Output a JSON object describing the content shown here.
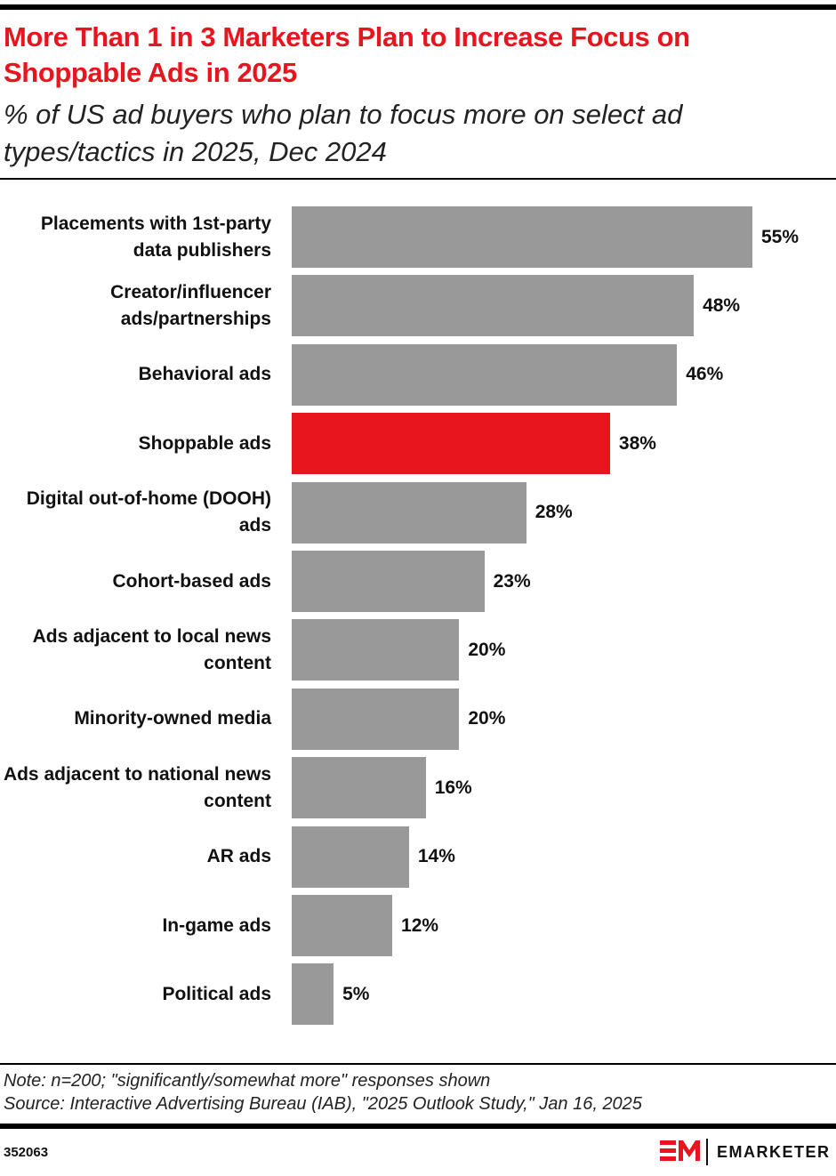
{
  "chart_data": {
    "type": "bar",
    "title": "More Than 1 in 3 Marketers Plan to Increase Focus on Shoppable Ads in 2025",
    "subtitle": "% of US ad buyers who plan to focus more on select ad types/tactics in 2025, Dec 2024",
    "categories": [
      "Placements with 1st-party data publishers",
      "Creator/influencer ads/partnerships",
      "Behavioral ads",
      "Shoppable ads",
      "Digital out-of-home (DOOH) ads",
      "Cohort-based ads",
      "Ads adjacent to local news content",
      "Minority-owned media",
      "Ads adjacent to national news content",
      "AR ads",
      "In-game ads",
      "Political ads"
    ],
    "values": [
      55,
      48,
      46,
      38,
      28,
      23,
      20,
      20,
      16,
      14,
      12,
      5
    ],
    "value_labels": [
      "55%",
      "48%",
      "46%",
      "38%",
      "28%",
      "23%",
      "20%",
      "20%",
      "16%",
      "14%",
      "12%",
      "5%"
    ],
    "colors": [
      "#999999",
      "#999999",
      "#999999",
      "#e8141e",
      "#999999",
      "#999999",
      "#999999",
      "#999999",
      "#999999",
      "#999999",
      "#999999",
      "#999999"
    ],
    "note": "Note: n=200; \"significantly/somewhat more\" responses shown",
    "source": "Source: Interactive Advertising Bureau (IAB), \"2025 Outlook Study,\" Jan 16, 2025"
  },
  "footer": {
    "id": "352063",
    "brand": "EMARKETER"
  }
}
